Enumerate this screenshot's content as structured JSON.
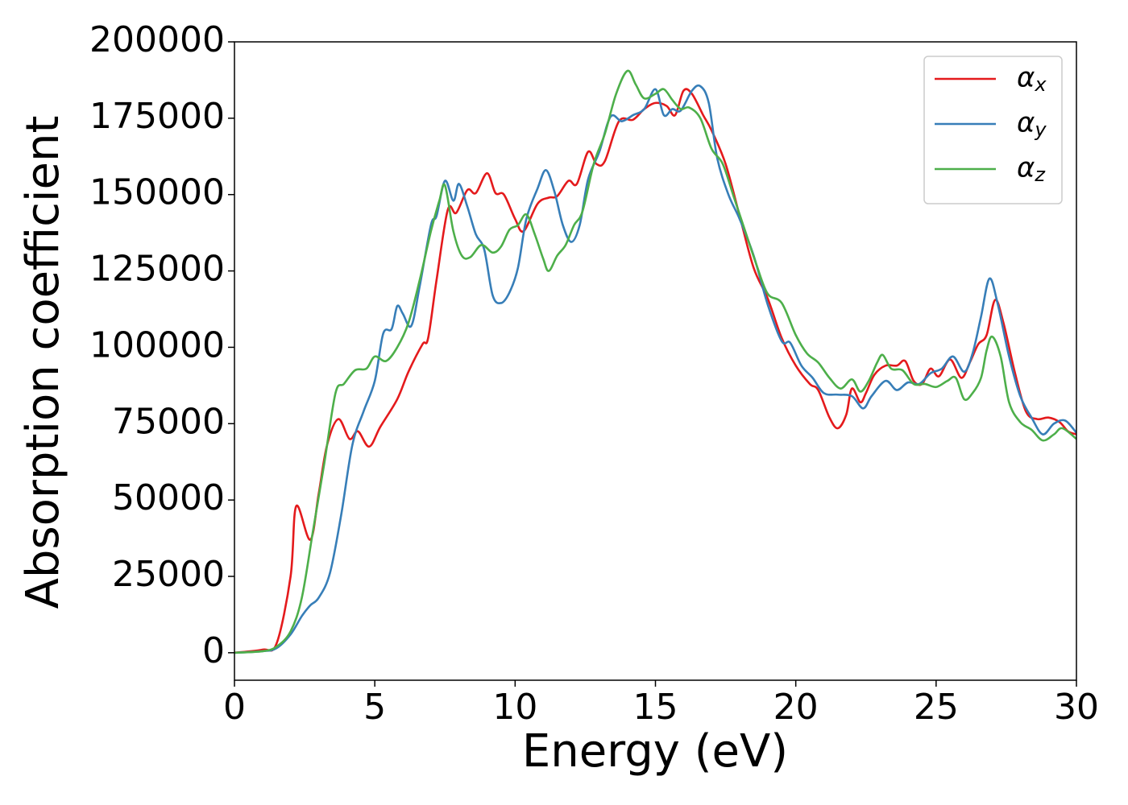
{
  "chart_data": {
    "type": "line",
    "xlabel": "Energy (eV)",
    "ylabel": "Absorption coefficient",
    "xlim": [
      0,
      30
    ],
    "ylim": [
      -9000,
      200000
    ],
    "xticks": [
      0,
      5,
      10,
      15,
      20,
      25,
      30
    ],
    "yticks": [
      0,
      25000,
      50000,
      75000,
      100000,
      125000,
      150000,
      175000,
      200000
    ],
    "grid": false,
    "legend": "upper right",
    "series": [
      {
        "name": "αx",
        "color": "#e41a1c",
        "x": [
          0,
          1,
          1.5,
          2.0,
          2.2,
          2.7,
          3.0,
          3.3,
          3.7,
          4.1,
          4.4,
          4.8,
          5.2,
          5.8,
          6.2,
          6.7,
          6.9,
          7.2,
          7.6,
          7.9,
          8.3,
          8.6,
          9.0,
          9.3,
          9.6,
          10.0,
          10.3,
          10.8,
          11.2,
          11.5,
          11.9,
          12.2,
          12.6,
          12.9,
          13.2,
          13.7,
          14.2,
          14.6,
          15.0,
          15.4,
          15.7,
          16.0,
          16.3,
          16.7,
          17.0,
          17.5,
          18.0,
          18.5,
          19.0,
          19.5,
          20.0,
          20.5,
          20.8,
          21.2,
          21.5,
          21.8,
          22.0,
          22.3,
          22.5,
          22.8,
          23.2,
          23.6,
          23.9,
          24.2,
          24.5,
          24.8,
          25.1,
          25.5,
          25.9,
          26.2,
          26.5,
          26.8,
          27.1,
          27.4,
          27.8,
          28.2,
          28.6,
          29.0,
          29.4,
          29.7,
          30
        ],
        "values": [
          0,
          1000,
          3000,
          25000,
          48000,
          37000,
          52000,
          68000,
          76500,
          70000,
          72500,
          67500,
          74000,
          83000,
          92000,
          101000,
          103000,
          122000,
          145000,
          144000,
          151500,
          150500,
          157000,
          150500,
          150000,
          142000,
          138000,
          147000,
          149000,
          149500,
          154500,
          153500,
          164000,
          160000,
          161000,
          174000,
          174500,
          178000,
          180000,
          179000,
          176000,
          184000,
          183000,
          176000,
          171000,
          160000,
          143000,
          126000,
          116000,
          103000,
          94000,
          88000,
          86000,
          77000,
          73500,
          78000,
          86500,
          82000,
          85000,
          91000,
          94000,
          94000,
          95500,
          89000,
          88000,
          93000,
          90500,
          96000,
          90000,
          95000,
          101000,
          104000,
          115500,
          108000,
          92000,
          79000,
          76500,
          77000,
          75500,
          72500,
          71500
        ]
      },
      {
        "name": "αy",
        "color": "#377eb8",
        "x": [
          0,
          1,
          1.5,
          2.0,
          2.4,
          2.7,
          3.0,
          3.4,
          3.8,
          4.2,
          4.6,
          5.0,
          5.3,
          5.6,
          5.8,
          6.0,
          6.3,
          6.6,
          7.0,
          7.2,
          7.5,
          7.8,
          8.0,
          8.3,
          8.6,
          8.9,
          9.2,
          9.5,
          9.8,
          10.1,
          10.4,
          10.8,
          11.1,
          11.4,
          11.7,
          12.0,
          12.3,
          12.6,
          13.0,
          13.4,
          13.8,
          14.2,
          14.6,
          15.0,
          15.3,
          15.6,
          15.9,
          16.3,
          16.6,
          16.9,
          17.2,
          17.6,
          18.0,
          18.5,
          19.0,
          19.5,
          19.8,
          20.2,
          20.6,
          21.0,
          21.5,
          22.0,
          22.4,
          22.7,
          23.2,
          23.6,
          24.0,
          24.4,
          24.8,
          25.2,
          25.6,
          26.0,
          26.3,
          26.6,
          26.9,
          27.2,
          27.6,
          28.0,
          28.4,
          28.8,
          29.2,
          29.6,
          30
        ],
        "values": [
          0,
          500,
          1500,
          6000,
          12000,
          15500,
          18000,
          26000,
          45000,
          68000,
          79000,
          89000,
          104500,
          106000,
          113500,
          111000,
          107000,
          120000,
          140000,
          143000,
          154500,
          148000,
          153500,
          146000,
          137000,
          132000,
          117000,
          114500,
          118000,
          126000,
          142000,
          152000,
          158000,
          151000,
          140000,
          134500,
          140000,
          155000,
          164000,
          175500,
          174000,
          176000,
          178000,
          184500,
          176000,
          178000,
          177500,
          184000,
          185500,
          180000,
          162000,
          150000,
          142000,
          130000,
          114000,
          102000,
          101500,
          94000,
          90000,
          85000,
          84500,
          84000,
          80000,
          84000,
          89000,
          86000,
          88500,
          88000,
          91500,
          93000,
          97000,
          92000,
          98000,
          110000,
          122500,
          114000,
          97000,
          84000,
          77000,
          71500,
          75000,
          76000,
          72000
        ]
      },
      {
        "name": "αz",
        "color": "#4daf4a",
        "x": [
          0,
          1,
          1.5,
          2.0,
          2.4,
          2.8,
          3.2,
          3.6,
          3.9,
          4.3,
          4.7,
          5.0,
          5.4,
          5.8,
          6.2,
          6.6,
          7.0,
          7.3,
          7.5,
          7.8,
          8.1,
          8.4,
          8.8,
          9.2,
          9.5,
          9.8,
          10.1,
          10.4,
          10.7,
          11.0,
          11.2,
          11.5,
          11.8,
          12.1,
          12.4,
          12.8,
          13.2,
          13.6,
          14.0,
          14.3,
          14.6,
          15.0,
          15.3,
          15.6,
          15.9,
          16.2,
          16.6,
          17.0,
          17.4,
          17.8,
          18.2,
          18.6,
          19.0,
          19.5,
          20.0,
          20.4,
          20.8,
          21.2,
          21.6,
          22.0,
          22.3,
          22.6,
          22.9,
          23.1,
          23.4,
          23.8,
          24.2,
          24.6,
          25.0,
          25.4,
          25.7,
          26.0,
          26.3,
          26.6,
          26.8,
          27.0,
          27.3,
          27.6,
          28.0,
          28.4,
          28.8,
          29.2,
          29.5,
          30
        ],
        "values": [
          0,
          500,
          2000,
          7000,
          18000,
          40000,
          62000,
          85000,
          88000,
          92500,
          93000,
          97000,
          95500,
          100000,
          108000,
          122000,
          138000,
          148000,
          153000,
          138000,
          130000,
          129500,
          133500,
          131000,
          133000,
          138500,
          140000,
          143500,
          137000,
          129000,
          125000,
          130000,
          133500,
          140000,
          144500,
          160000,
          170000,
          183000,
          190500,
          186000,
          181500,
          183000,
          184500,
          181000,
          178000,
          178500,
          175000,
          165000,
          160000,
          149000,
          138000,
          127000,
          117500,
          114500,
          104000,
          98000,
          95000,
          90000,
          86500,
          89500,
          85500,
          89000,
          95000,
          97500,
          93000,
          92500,
          88000,
          88000,
          87000,
          89000,
          90000,
          83000,
          85000,
          90000,
          99000,
          103500,
          97000,
          82000,
          75500,
          73000,
          69500,
          71500,
          73500,
          70000
        ]
      }
    ]
  }
}
